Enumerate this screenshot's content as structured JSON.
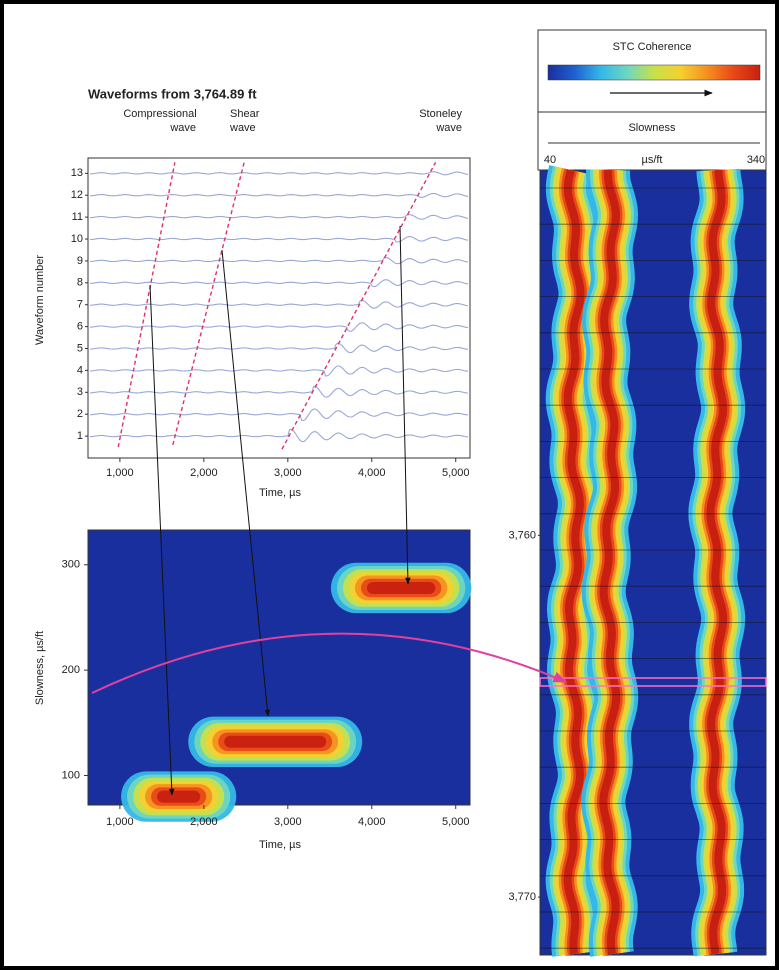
{
  "chart_data": [
    {
      "type": "line",
      "title": "Waveforms from 3,764.89 ft",
      "x_label": "Time, µs",
      "y_label": "Waveform number",
      "annotations": [
        [
          "Compressional",
          "wave"
        ],
        [
          "Shear",
          "wave"
        ],
        [
          "Stoneley",
          "wave"
        ]
      ],
      "xlim": [
        620,
        5170
      ],
      "xticks": [
        {
          "value": 1000,
          "label": "1,000"
        },
        {
          "value": 2000,
          "label": "2,000"
        },
        {
          "value": 3000,
          "label": "3,000"
        },
        {
          "value": 4000,
          "label": "4,000"
        },
        {
          "value": 5000,
          "label": "5,000"
        }
      ],
      "ylim": [
        0,
        13.7
      ],
      "yticks": [
        1,
        2,
        3,
        4,
        5,
        6,
        7,
        8,
        9,
        10,
        11,
        12,
        13
      ],
      "series": [
        {
          "color": "#e0306a",
          "x": [
            980,
            1655
          ],
          "values": [
            0.5,
            13.5
          ]
        },
        {
          "color": "#e0306a",
          "x": [
            1630,
            2480
          ],
          "values": [
            0.6,
            13.5
          ]
        },
        {
          "color": "#e0306a",
          "x": [
            2930,
            4760
          ],
          "values": [
            0.4,
            13.5
          ]
        }
      ]
    },
    {
      "type": "heatmap",
      "x_label": "Time, µs",
      "y_label": "Slowness, µs/ft",
      "xlim": [
        620,
        5170
      ],
      "xticks": [
        {
          "value": 1000,
          "label": "1,000"
        },
        {
          "value": 2000,
          "label": "2,000"
        },
        {
          "value": 3000,
          "label": "3,000"
        },
        {
          "value": 4000,
          "label": "4,000"
        },
        {
          "value": 5000,
          "label": "5,000"
        }
      ],
      "ylim": [
        72,
        333
      ],
      "yticks": [
        100,
        200,
        300
      ],
      "series": [
        {
          "x_start": [
            1300,
            2100,
            3800
          ],
          "x_end": [
            2100,
            3600,
            4900
          ],
          "values": [
            80,
            132,
            278
          ]
        }
      ]
    },
    {
      "type": "heatmap",
      "title": "STC Coherence",
      "subtitle": "Slowness",
      "x_label": "µs/ft",
      "colormap": [
        "#1a2f9e",
        "#1f60d0",
        "#33b8e8",
        "#6fd7c0",
        "#c8e04a",
        "#f5d030",
        "#f59020",
        "#e84818",
        "#c82010"
      ],
      "xlim": [
        40,
        340
      ],
      "xticks": [
        40,
        340
      ],
      "ylim": [
        3749.9,
        3771.6
      ],
      "yticks": [
        {
          "value": 3760,
          "label": "3,760"
        },
        {
          "value": 3770,
          "label": "3,770"
        }
      ],
      "bands": [
        75,
        127,
        283
      ]
    }
  ]
}
